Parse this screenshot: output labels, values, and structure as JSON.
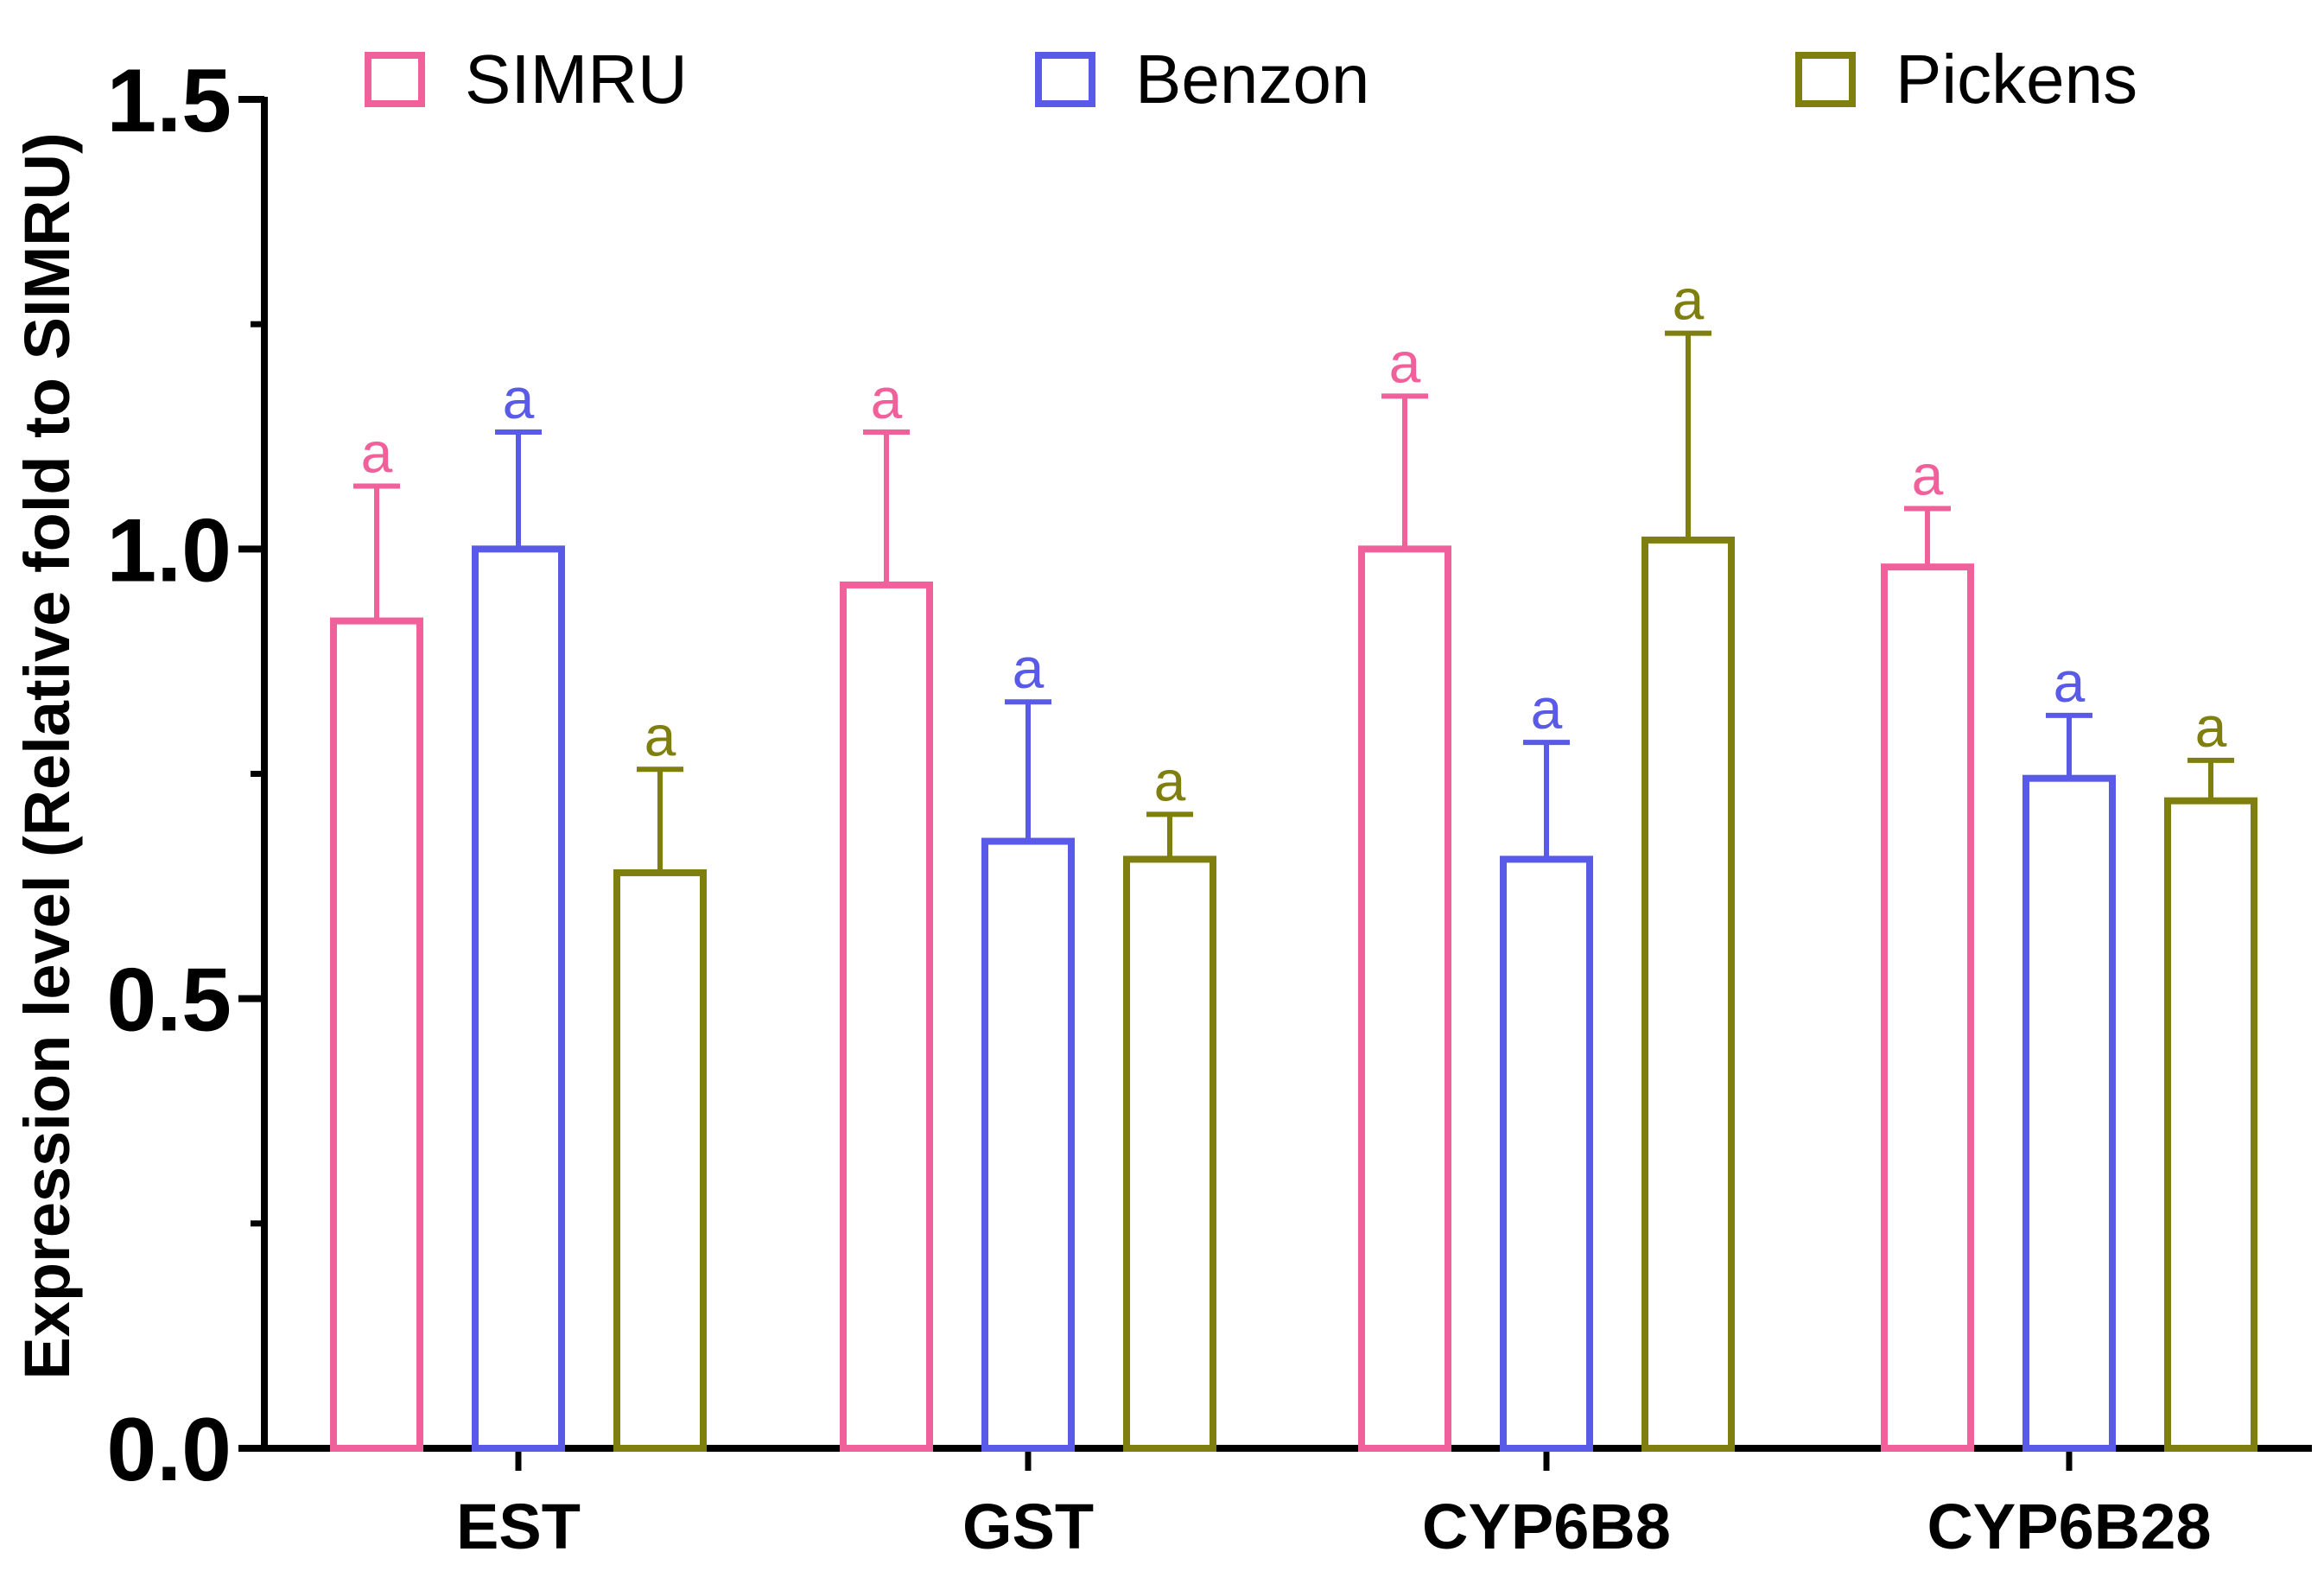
{
  "chart_data": {
    "type": "bar",
    "title": "",
    "xlabel": "",
    "ylabel": "Expression level (Relative fold to SIMRU)",
    "ylim": [
      0,
      1.5
    ],
    "yticks": [
      "0.0",
      "0.5",
      "1.0",
      "1.5"
    ],
    "minor_ticks": [
      0.25,
      0.75,
      1.25
    ],
    "categories": [
      "EST",
      "GST",
      "CYP6B8",
      "CYP6B28"
    ],
    "legend_position": "top",
    "series": [
      {
        "name": "SIMRU",
        "color": "#f0609a",
        "values": [
          0.92,
          0.96,
          1.0,
          0.98
        ],
        "errors": [
          0.15,
          0.17,
          0.17,
          0.065
        ],
        "labels": [
          "a",
          "a",
          "a",
          "a"
        ]
      },
      {
        "name": "Benzon",
        "color": "#5a5ae8",
        "values": [
          1.0,
          0.675,
          0.655,
          0.745
        ],
        "errors": [
          0.13,
          0.155,
          0.13,
          0.07
        ],
        "labels": [
          "a",
          "a",
          "a",
          "a"
        ]
      },
      {
        "name": "Pickens",
        "color": "#7f7f0f",
        "values": [
          0.64,
          0.655,
          1.01,
          0.72
        ],
        "errors": [
          0.115,
          0.05,
          0.23,
          0.045
        ],
        "labels": [
          "a",
          "a",
          "a",
          "a"
        ]
      }
    ]
  }
}
